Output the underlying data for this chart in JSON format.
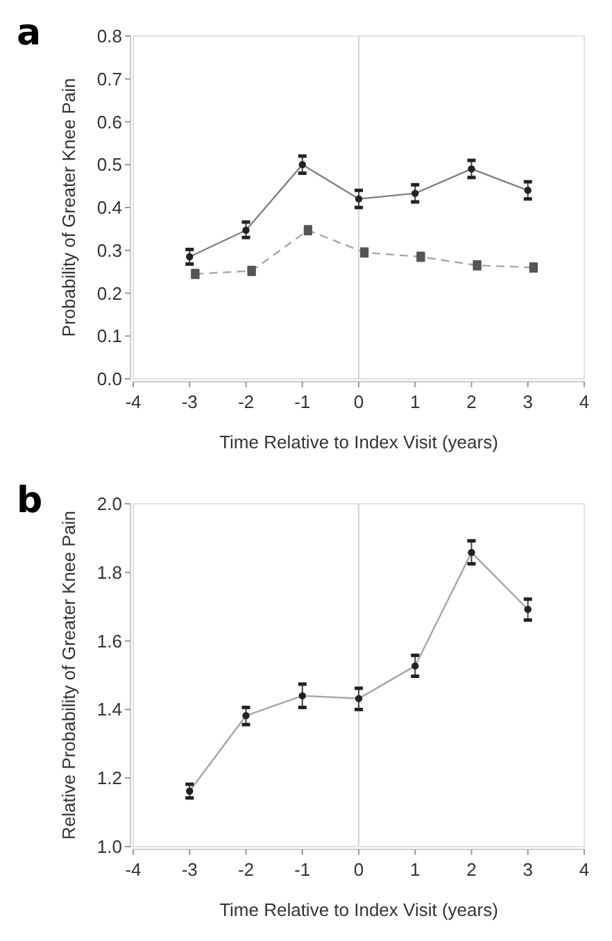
{
  "chart_data": [
    {
      "type": "line",
      "title": "a",
      "xlabel": "Time Relative to Index Visit (years)",
      "ylabel": "Probability of Greater Knee Pain",
      "xlim": [
        -4,
        4
      ],
      "xticks": [
        -4,
        -3,
        -2,
        -1,
        0,
        1,
        2,
        3,
        4
      ],
      "ylim": [
        0,
        0.8
      ],
      "yticks": [
        {
          "value": 0,
          "label": "0.0"
        },
        0.1,
        0.2,
        0.3,
        0.4,
        0.5,
        0.6,
        0.7,
        0.8
      ],
      "grid": false,
      "ref_lines": [
        {
          "axis": "x",
          "value": 0,
          "color": "#d9d9d9"
        }
      ],
      "series": [
        {
          "color": "#808080",
          "marker": "circle",
          "line_style": "solid",
          "x": [
            -3,
            -2,
            -1,
            0,
            1,
            2,
            3
          ],
          "values": [
            0.285,
            0.347,
            0.5,
            0.42,
            0.433,
            0.49,
            0.44
          ],
          "errors": [
            [
              0.268,
              0.302
            ],
            [
              0.33,
              0.366
            ],
            [
              0.48,
              0.52
            ],
            [
              0.4,
              0.44
            ],
            [
              0.413,
              0.453
            ],
            [
              0.47,
              0.51
            ],
            [
              0.42,
              0.46
            ]
          ]
        },
        {
          "color": "#a6a6a6",
          "marker": "square",
          "line_style": "dashed",
          "x": [
            -2.9,
            -1.9,
            -0.9,
            0.1,
            1.1,
            2.1,
            3.1
          ],
          "values": [
            0.245,
            0.252,
            0.347,
            0.295,
            0.285,
            0.265,
            0.26
          ],
          "errors": [
            0.012,
            0.012,
            0.012,
            0.012,
            0.012,
            0.012,
            0.012
          ]
        }
      ]
    },
    {
      "type": "line",
      "title": "b",
      "xlabel": "Time Relative to Index Visit (years)",
      "ylabel": "Relative Probability of Greater Knee Pain",
      "xlim": [
        -4,
        4
      ],
      "xticks": [
        -4,
        -3,
        -2,
        -1,
        0,
        1,
        2,
        3,
        4
      ],
      "ylim": [
        1,
        2
      ],
      "yticks": [
        {
          "value": 1,
          "label": "1.0"
        },
        1.2,
        1.4,
        1.6,
        1.8,
        {
          "value": 2,
          "label": "2.0"
        }
      ],
      "grid": false,
      "ref_lines": [
        {
          "axis": "x",
          "value": 0,
          "color": "#d9d9d9"
        }
      ],
      "series": [
        {
          "color": "#a6a6a6",
          "marker": "circle",
          "line_style": "solid",
          "x": [
            -3,
            -2,
            -1,
            0,
            1,
            2,
            3
          ],
          "values": [
            1.162,
            1.382,
            1.44,
            1.432,
            1.527,
            1.858,
            1.692
          ],
          "errors": [
            [
              1.142,
              1.182
            ],
            [
              1.356,
              1.406
            ],
            [
              1.406,
              1.474
            ],
            [
              1.4,
              1.462
            ],
            [
              1.497,
              1.558
            ],
            [
              1.825,
              1.892
            ],
            [
              1.661,
              1.722
            ]
          ]
        }
      ]
    }
  ]
}
